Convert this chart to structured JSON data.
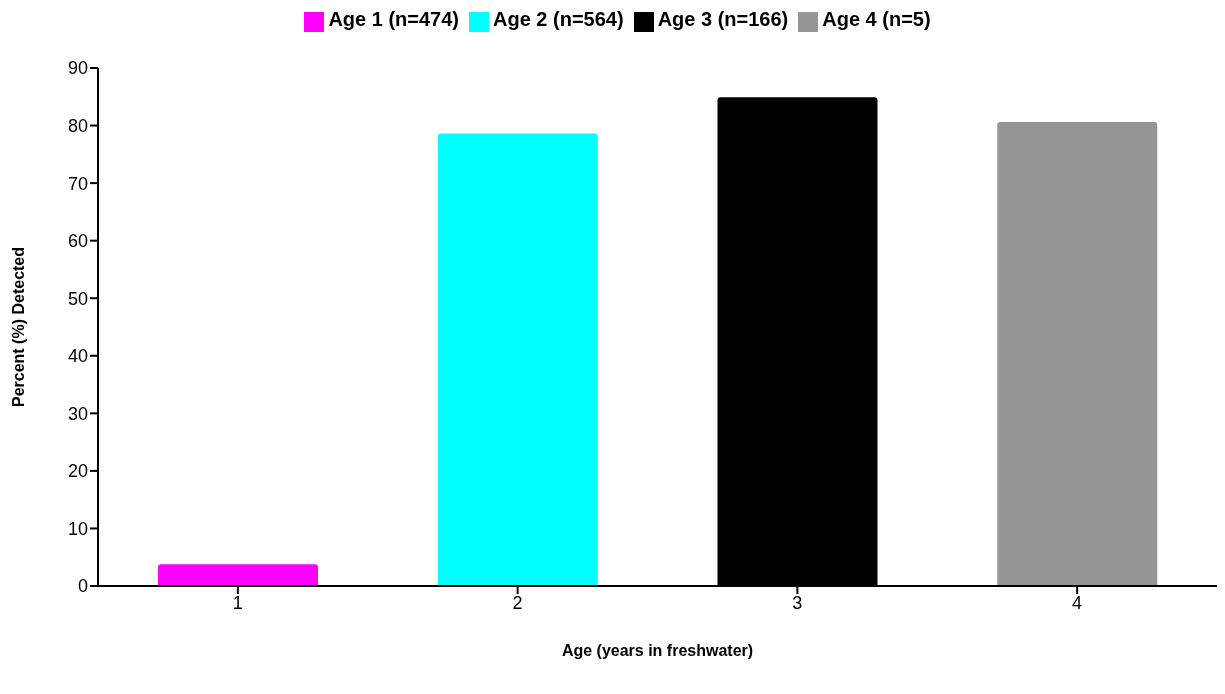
{
  "chart_data": {
    "type": "bar",
    "xlabel": "Age (years in freshwater)",
    "ylabel": "Percent (%) Detected",
    "categories": [
      "1",
      "2",
      "3",
      "4"
    ],
    "stacked": true,
    "series": [
      {
        "name": "Age 1 (n=474)",
        "color": "#ff00ff",
        "values": [
          3.8,
          null,
          null,
          null
        ]
      },
      {
        "name": "Age 2 (n=564)",
        "color": "#00ffff",
        "values": [
          null,
          78.6,
          null,
          null
        ]
      },
      {
        "name": "Age 3 (n=166)",
        "color": "#000000",
        "values": [
          null,
          null,
          84.9,
          null
        ]
      },
      {
        "name": "Age 4 (n=5)",
        "color": "#969696",
        "values": [
          null,
          null,
          null,
          80.6
        ]
      }
    ],
    "ylim": [
      0,
      90
    ],
    "yticks": [
      0,
      10,
      20,
      30,
      40,
      50,
      60,
      70,
      80,
      90
    ],
    "grid": false,
    "legend": "top"
  }
}
